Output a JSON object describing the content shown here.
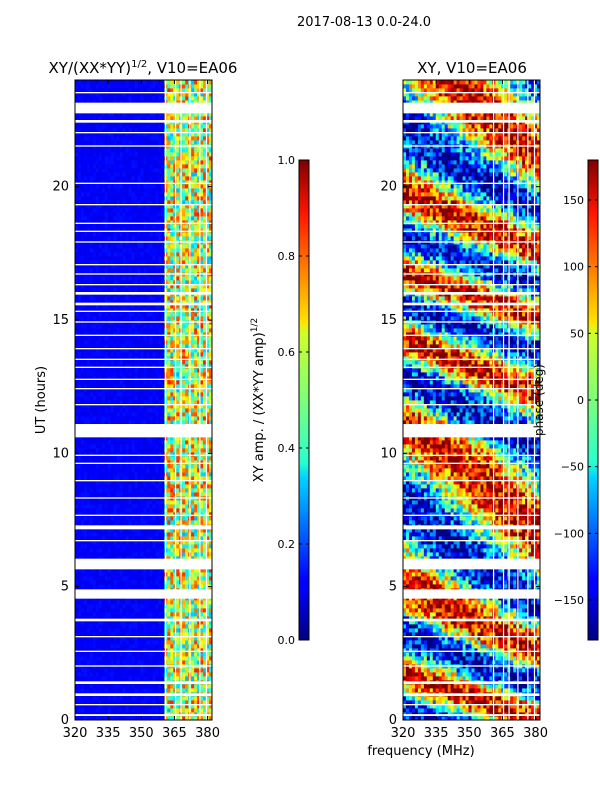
{
  "suptitle": "2017-08-13 0.0-24.0",
  "chart_data": [
    {
      "type": "heatmap",
      "title": "XY/(XX*YY)^1/2, V10=EA06",
      "title_main": "XY/(XX*YY)",
      "title_sup": "1/2",
      "title_tail": ", V10=EA06",
      "xlabel": "",
      "ylabel": "UT (hours)",
      "xlim": [
        320,
        382
      ],
      "ylim": [
        0,
        24
      ],
      "xticks": [
        320,
        335,
        350,
        365,
        380
      ],
      "yticks": [
        0,
        5,
        10,
        15,
        20
      ],
      "colorbar": {
        "label": "XY amp. / (XX*YY amp)^1/2",
        "label_main": "XY amp. / (XX*YY amp)",
        "label_sup": "1/2",
        "range": [
          0.0,
          1.0
        ],
        "ticks": [
          "0.0",
          "0.2",
          "0.4",
          "0.6",
          "0.8",
          "1.0"
        ],
        "colormap": "jet"
      },
      "value_description": "mostly ~0.1 below 360 MHz, 0.3-0.9 in 360-382 MHz band"
    },
    {
      "type": "heatmap",
      "title": "XY, V10=EA06",
      "xlabel": "frequency (MHz)",
      "ylabel": "",
      "xlim": [
        320,
        382
      ],
      "ylim": [
        0,
        24
      ],
      "xticks": [
        320,
        335,
        350,
        365,
        380
      ],
      "yticks": [
        0,
        5,
        10,
        15,
        20
      ],
      "colorbar": {
        "label": "phase (deg)",
        "range": [
          -180,
          180
        ],
        "ticks": [
          "150",
          "100",
          "50",
          "0",
          "−50",
          "−100",
          "−150"
        ],
        "colormap": "jet"
      }
    }
  ],
  "gaps_hours": [
    [
      0.15,
      0.22
    ],
    [
      0.55,
      0.6
    ],
    [
      0.9,
      1.0
    ],
    [
      1.35,
      1.45
    ],
    [
      2.0,
      2.05
    ],
    [
      2.55,
      2.6
    ],
    [
      3.1,
      3.15
    ],
    [
      3.7,
      3.8
    ],
    [
      4.55,
      4.9
    ],
    [
      5.65,
      6.05
    ],
    [
      6.7,
      6.75
    ],
    [
      7.15,
      7.3
    ],
    [
      7.65,
      7.7
    ],
    [
      8.3,
      8.35
    ],
    [
      8.95,
      9.0
    ],
    [
      9.6,
      9.65
    ],
    [
      9.9,
      9.95
    ],
    [
      10.6,
      11.1
    ],
    [
      11.8,
      11.85
    ],
    [
      12.4,
      12.45
    ],
    [
      12.75,
      12.8
    ],
    [
      13.2,
      13.25
    ],
    [
      13.5,
      13.55
    ],
    [
      13.9,
      13.95
    ],
    [
      14.4,
      14.45
    ],
    [
      14.9,
      14.95
    ],
    [
      15.3,
      15.35
    ],
    [
      15.55,
      15.65
    ],
    [
      15.95,
      16.05
    ],
    [
      16.3,
      16.35
    ],
    [
      16.7,
      16.75
    ],
    [
      17.05,
      17.1
    ],
    [
      17.9,
      17.95
    ],
    [
      18.3,
      18.35
    ],
    [
      18.6,
      18.65
    ],
    [
      19.3,
      19.35
    ],
    [
      20.1,
      20.15
    ],
    [
      21.5,
      21.55
    ],
    [
      22.0,
      22.05
    ],
    [
      22.4,
      22.5
    ],
    [
      22.75,
      23.15
    ],
    [
      23.5,
      23.55
    ]
  ],
  "rfi_columns_mhz": [
    361,
    365.5,
    368,
    372,
    376.5,
    379.5
  ]
}
